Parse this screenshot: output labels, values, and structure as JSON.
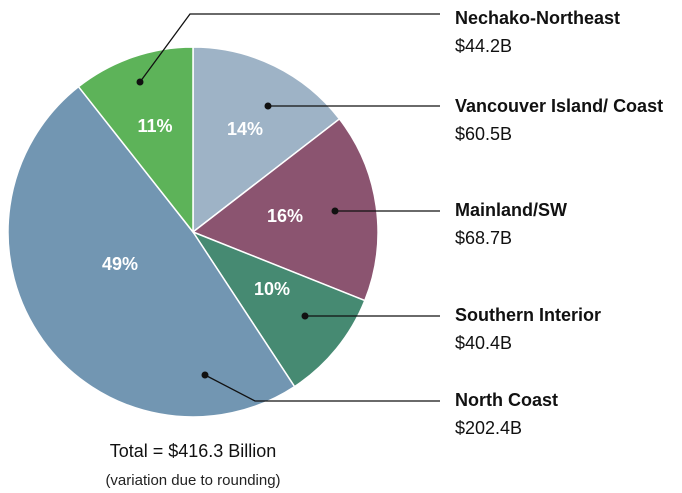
{
  "chart_data": {
    "type": "pie",
    "categories": [
      "Vancouver Island/ Coast",
      "Mainland/SW",
      "Southern Interior",
      "North Coast",
      "Nechako-Northeast"
    ],
    "values": [
      60.5,
      68.7,
      40.4,
      202.4,
      44.2
    ],
    "value_labels": [
      "$60.5B",
      "$68.7B",
      "$40.4B",
      "$202.4B",
      "$44.2B"
    ],
    "percentages": [
      14,
      16,
      10,
      49,
      11
    ],
    "percentage_labels": [
      "14%",
      "16%",
      "10%",
      "49%",
      "11%"
    ],
    "colors": [
      "#9eb3c6",
      "#8b5470",
      "#468a72",
      "#7296b2",
      "#5db359"
    ],
    "total_label": "Total = $416.3 Billion",
    "note": "(variation due to rounding)"
  }
}
